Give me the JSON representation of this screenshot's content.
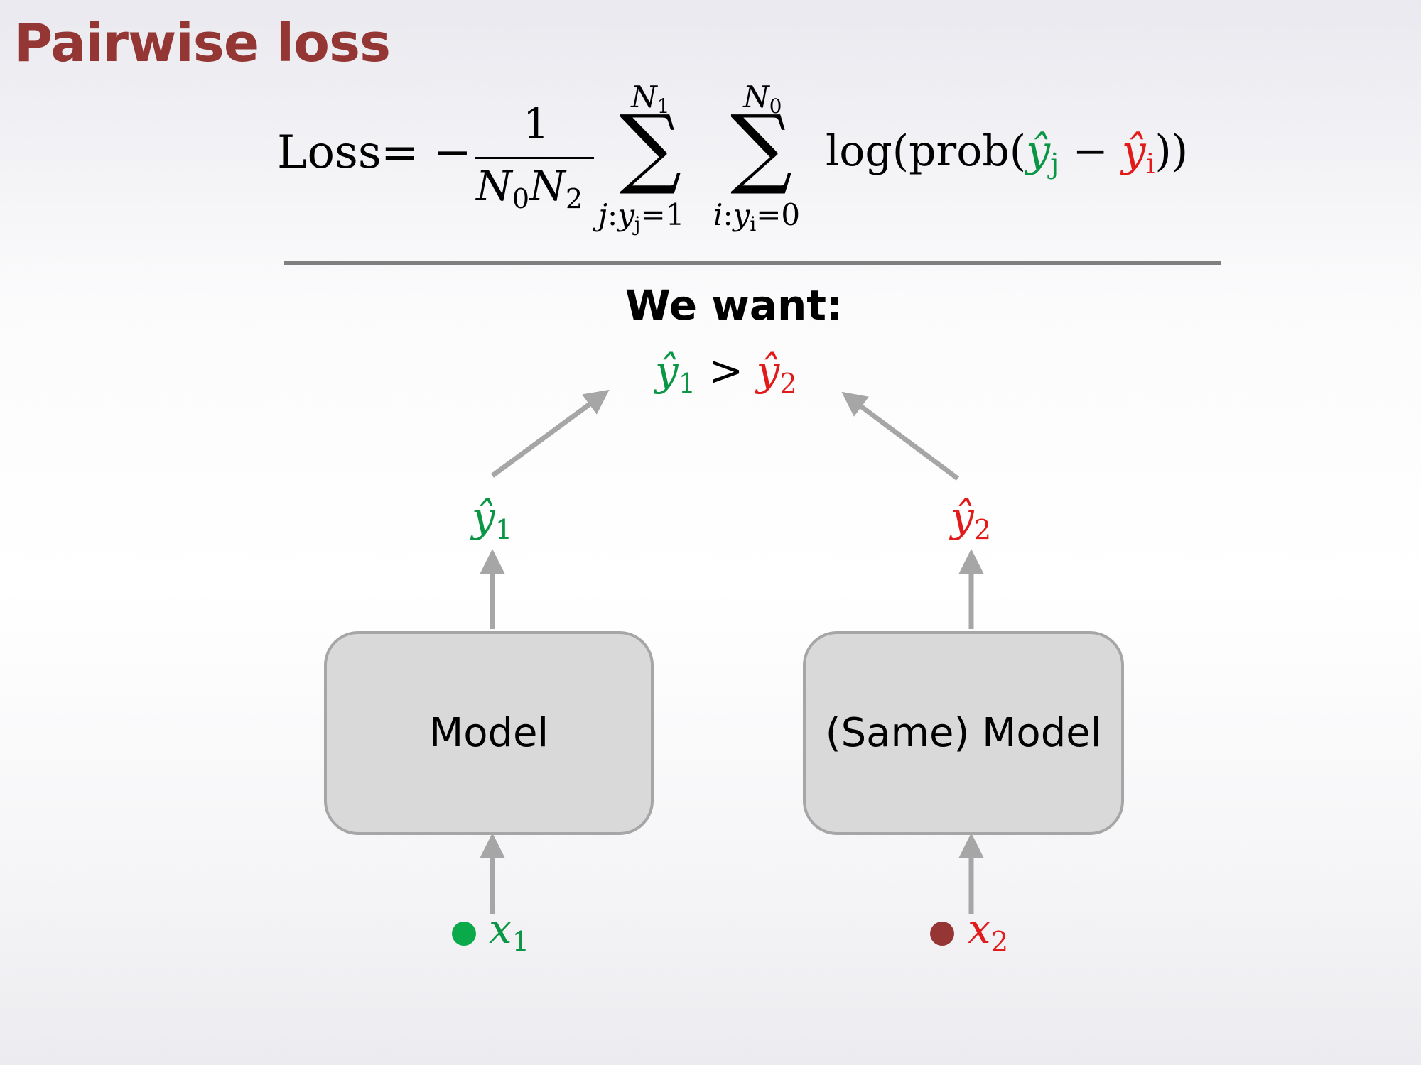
{
  "slide": {
    "title": "Pairwise loss"
  },
  "formula": {
    "lhs": "Loss",
    "equals": "=",
    "minus": "−",
    "numerator": "1",
    "denominator": {
      "n0": "N",
      "n0_sub": "0",
      "n2": "N",
      "n2_sub": "2"
    },
    "sum_positive": {
      "upper": "N",
      "upper_sub": "1",
      "symbol": "∑",
      "lower_index": "j",
      "lower_colon": ":",
      "lower_y": "y",
      "lower_y_sub": "j",
      "lower_value": "=1"
    },
    "sum_negative": {
      "upper": "N",
      "upper_sub": "0",
      "symbol": "∑",
      "lower_index": "i",
      "lower_colon": ":",
      "lower_y": "y",
      "lower_y_sub": "i",
      "lower_value": "=0"
    },
    "log_open": "log(prob(",
    "yj": "ŷ",
    "yj_sub": "j",
    "diff_minus": "−",
    "yi": "ŷ",
    "yi_sub": "i",
    "close": "))"
  },
  "diagram": {
    "want_label": "We want:",
    "inequality": {
      "left": "ŷ",
      "left_sub": "1",
      "op": ">",
      "right": "ŷ",
      "right_sub": "2"
    },
    "left": {
      "output": "ŷ",
      "output_sub": "1",
      "model_label": "Model",
      "input": "x",
      "input_sub": "1"
    },
    "right": {
      "output": "ŷ",
      "output_sub": "2",
      "model_label": "(Same) Model",
      "input": "x",
      "input_sub": "2"
    }
  },
  "colors": {
    "title": "#943634",
    "positive": "#0a9645",
    "negative": "#e21a1a",
    "negative_dot": "#963634",
    "box_fill": "#d9d9d9",
    "box_border": "#a6a6a6",
    "arrow": "#a6a6a6",
    "separator": "#7f7f7f"
  }
}
